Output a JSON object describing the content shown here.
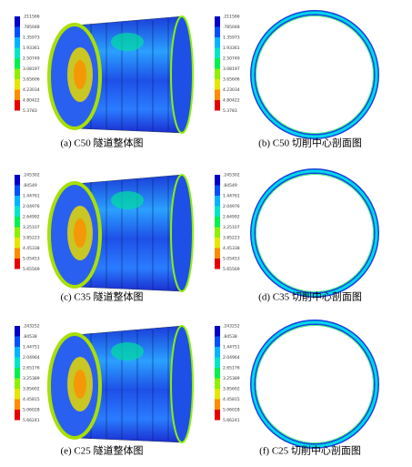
{
  "panels": [
    {
      "caption": "(a) C50 隧道整体图",
      "legend": [
        ".211566",
        ".785048",
        "1.35973",
        "1.93361",
        "2.50749",
        "3.08197",
        "3.65606",
        "4.23034",
        "4.80422",
        "5.3783"
      ]
    },
    {
      "caption": "(b) C50 切削中心剖面图",
      "legend": [
        ".211566",
        ".785048",
        "1.35973",
        "1.93361",
        "2.50749",
        "3.08197",
        "3.65606",
        "4.23034",
        "4.80422",
        "5.3783"
      ]
    },
    {
      "caption": "(c) C35 隧道整体图",
      "legend": [
        ".245302",
        ".84549",
        "1.44761",
        "2.04976",
        "2.64992",
        "3.25107",
        "3.85223",
        "4.45338",
        "5.05453",
        "5.65569"
      ]
    },
    {
      "caption": "(d) C35 切削中心剖面图",
      "legend": [
        ".245302",
        ".84549",
        "1.44761",
        "2.04976",
        "2.64992",
        "3.25107",
        "3.85223",
        "4.45338",
        "5.05453",
        "5.65569"
      ]
    },
    {
      "caption": "(e) C25 隧道整体图",
      "legend": [
        ".243252",
        ".84538",
        "1.44751",
        "2.04964",
        "2.65176",
        "3.25389",
        "3.85602",
        "4.45815",
        "5.06028",
        "5.66241"
      ]
    },
    {
      "caption": "(f) C25 切削中心剖面图",
      "legend": [
        ".243252",
        ".84538",
        "1.44751",
        "2.04964",
        "2.65176",
        "3.25389",
        "3.85602",
        "4.45815",
        "5.06028",
        "5.66241"
      ]
    }
  ]
}
